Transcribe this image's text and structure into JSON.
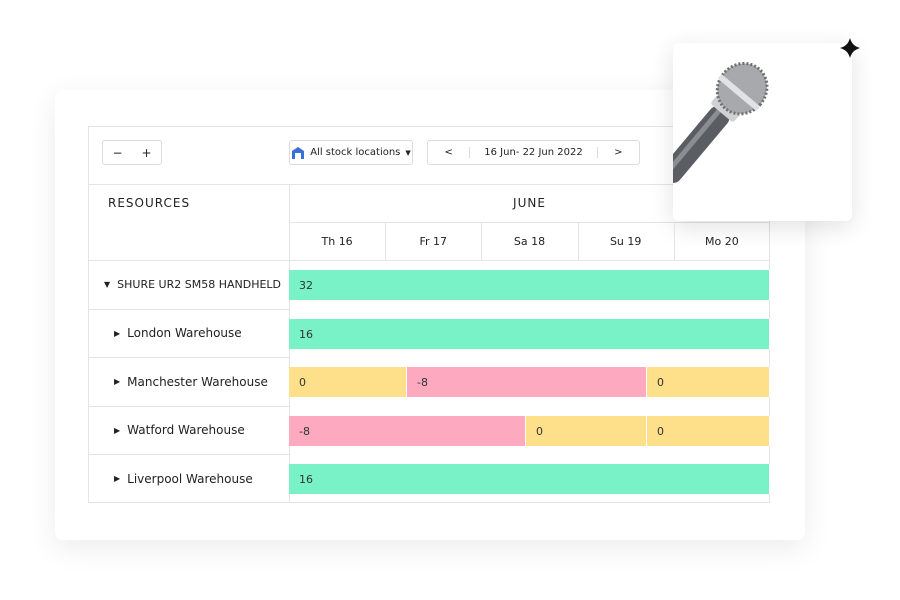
{
  "toolbar": {
    "zoom_out": "−",
    "zoom_in": "+",
    "location": "All stock locations",
    "prev": "<",
    "date_range": "16 Jun- 22 Jun 2022",
    "next": ">"
  },
  "table": {
    "resources_header": "RESOURCES",
    "month": "JUNE",
    "days": [
      "Th 16",
      "Fr 17",
      "Sa 18",
      "Su 19",
      "Mo 20"
    ],
    "rows": [
      {
        "label": "SHURE UR2 SM58 HANDHELD",
        "segments": [
          32
        ]
      },
      {
        "label": "London Warehouse",
        "segments": [
          16
        ]
      },
      {
        "label": "Manchester Warehouse",
        "segments": [
          0,
          -8,
          0
        ]
      },
      {
        "label": "Watford Warehouse",
        "segments": [
          -8,
          0,
          0
        ]
      },
      {
        "label": "Liverpool Warehouse",
        "segments": [
          16
        ]
      }
    ]
  }
}
